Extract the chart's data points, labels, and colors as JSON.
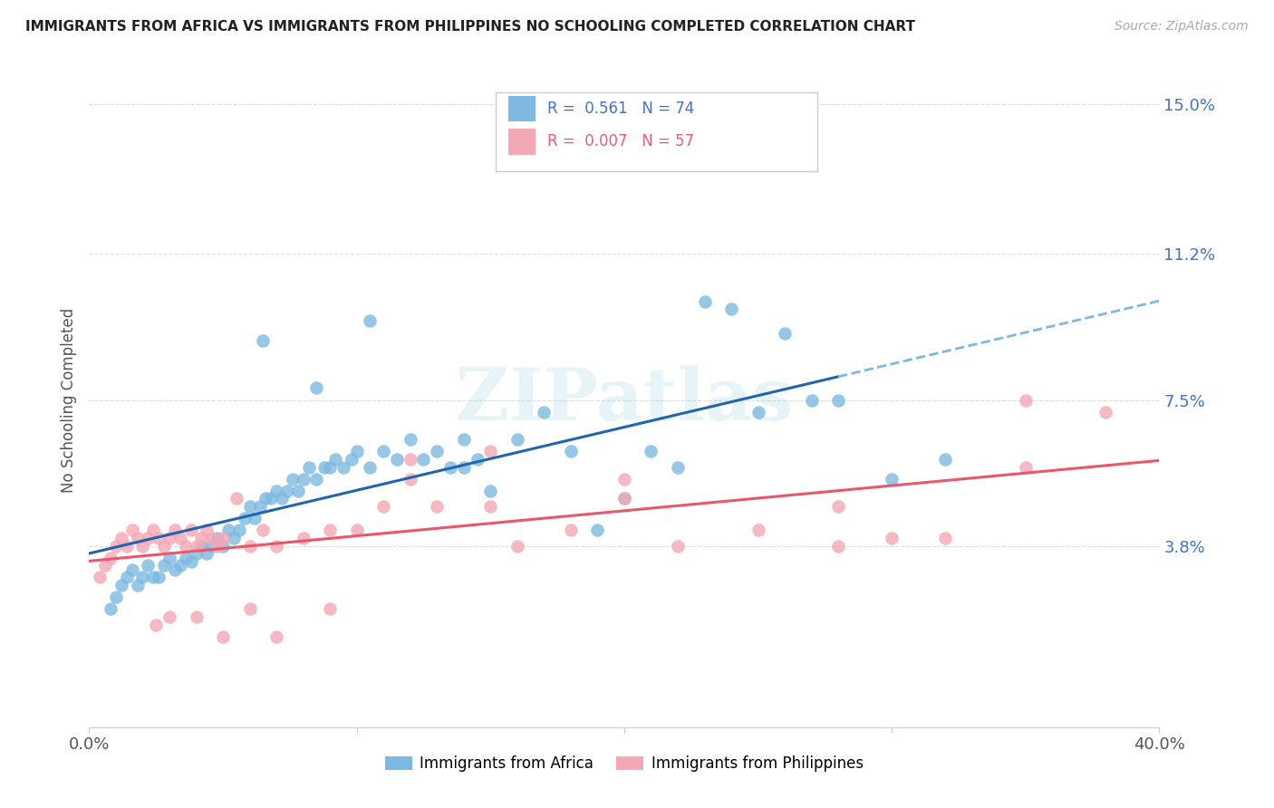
{
  "title": "IMMIGRANTS FROM AFRICA VS IMMIGRANTS FROM PHILIPPINES NO SCHOOLING COMPLETED CORRELATION CHART",
  "source": "Source: ZipAtlas.com",
  "ylabel": "No Schooling Completed",
  "xlim": [
    0.0,
    0.4
  ],
  "ylim": [
    -0.008,
    0.158
  ],
  "yticks": [
    0.038,
    0.075,
    0.112,
    0.15
  ],
  "ytick_labels": [
    "3.8%",
    "7.5%",
    "11.2%",
    "15.0%"
  ],
  "xticks": [
    0.0,
    0.1,
    0.2,
    0.3,
    0.4
  ],
  "xtick_labels": [
    "0.0%",
    "",
    "",
    "",
    "40.0%"
  ],
  "legend_africa": "Immigrants from Africa",
  "legend_philippines": "Immigrants from Philippines",
  "R_africa": "0.561",
  "N_africa": "74",
  "R_philippines": "0.007",
  "N_philippines": "57",
  "color_africa": "#7db9e0",
  "color_philippines": "#f4a7b4",
  "trendline_africa_solid_color": "#2166ac",
  "trendline_africa_dash_color": "#7db9e0",
  "trendline_philippines_color": "#e8576a",
  "watermark": "ZIPatlas",
  "africa_x": [
    0.008,
    0.01,
    0.012,
    0.014,
    0.016,
    0.018,
    0.02,
    0.022,
    0.024,
    0.026,
    0.028,
    0.03,
    0.032,
    0.034,
    0.036,
    0.038,
    0.04,
    0.042,
    0.044,
    0.046,
    0.048,
    0.05,
    0.052,
    0.054,
    0.056,
    0.058,
    0.06,
    0.062,
    0.064,
    0.066,
    0.068,
    0.07,
    0.072,
    0.074,
    0.076,
    0.078,
    0.08,
    0.082,
    0.085,
    0.088,
    0.09,
    0.092,
    0.095,
    0.098,
    0.1,
    0.105,
    0.11,
    0.115,
    0.12,
    0.125,
    0.13,
    0.135,
    0.14,
    0.145,
    0.15,
    0.16,
    0.17,
    0.18,
    0.19,
    0.2,
    0.21,
    0.22,
    0.23,
    0.24,
    0.25,
    0.26,
    0.27,
    0.28,
    0.3,
    0.32,
    0.065,
    0.085,
    0.105,
    0.14
  ],
  "africa_y": [
    0.022,
    0.025,
    0.028,
    0.03,
    0.032,
    0.028,
    0.03,
    0.033,
    0.03,
    0.03,
    0.033,
    0.035,
    0.032,
    0.033,
    0.035,
    0.034,
    0.036,
    0.038,
    0.036,
    0.038,
    0.04,
    0.038,
    0.042,
    0.04,
    0.042,
    0.045,
    0.048,
    0.045,
    0.048,
    0.05,
    0.05,
    0.052,
    0.05,
    0.052,
    0.055,
    0.052,
    0.055,
    0.058,
    0.055,
    0.058,
    0.058,
    0.06,
    0.058,
    0.06,
    0.062,
    0.058,
    0.062,
    0.06,
    0.065,
    0.06,
    0.062,
    0.058,
    0.058,
    0.06,
    0.052,
    0.065,
    0.072,
    0.062,
    0.042,
    0.05,
    0.062,
    0.058,
    0.1,
    0.098,
    0.072,
    0.092,
    0.075,
    0.075,
    0.055,
    0.06,
    0.09,
    0.078,
    0.095,
    0.065
  ],
  "philippines_x": [
    0.004,
    0.006,
    0.008,
    0.01,
    0.012,
    0.014,
    0.016,
    0.018,
    0.02,
    0.022,
    0.024,
    0.026,
    0.028,
    0.03,
    0.032,
    0.034,
    0.036,
    0.038,
    0.04,
    0.042,
    0.044,
    0.046,
    0.048,
    0.05,
    0.055,
    0.06,
    0.065,
    0.07,
    0.08,
    0.09,
    0.1,
    0.11,
    0.12,
    0.13,
    0.15,
    0.16,
    0.18,
    0.2,
    0.22,
    0.25,
    0.28,
    0.3,
    0.32,
    0.35,
    0.38,
    0.025,
    0.03,
    0.04,
    0.05,
    0.06,
    0.07,
    0.09,
    0.12,
    0.15,
    0.2,
    0.28,
    0.35
  ],
  "philippines_y": [
    0.03,
    0.033,
    0.035,
    0.038,
    0.04,
    0.038,
    0.042,
    0.04,
    0.038,
    0.04,
    0.042,
    0.04,
    0.038,
    0.04,
    0.042,
    0.04,
    0.038,
    0.042,
    0.038,
    0.04,
    0.042,
    0.04,
    0.038,
    0.04,
    0.05,
    0.038,
    0.042,
    0.038,
    0.04,
    0.042,
    0.042,
    0.048,
    0.055,
    0.048,
    0.048,
    0.038,
    0.042,
    0.055,
    0.038,
    0.042,
    0.048,
    0.04,
    0.04,
    0.058,
    0.072,
    0.018,
    0.02,
    0.02,
    0.015,
    0.022,
    0.015,
    0.022,
    0.06,
    0.062,
    0.05,
    0.038,
    0.075
  ]
}
